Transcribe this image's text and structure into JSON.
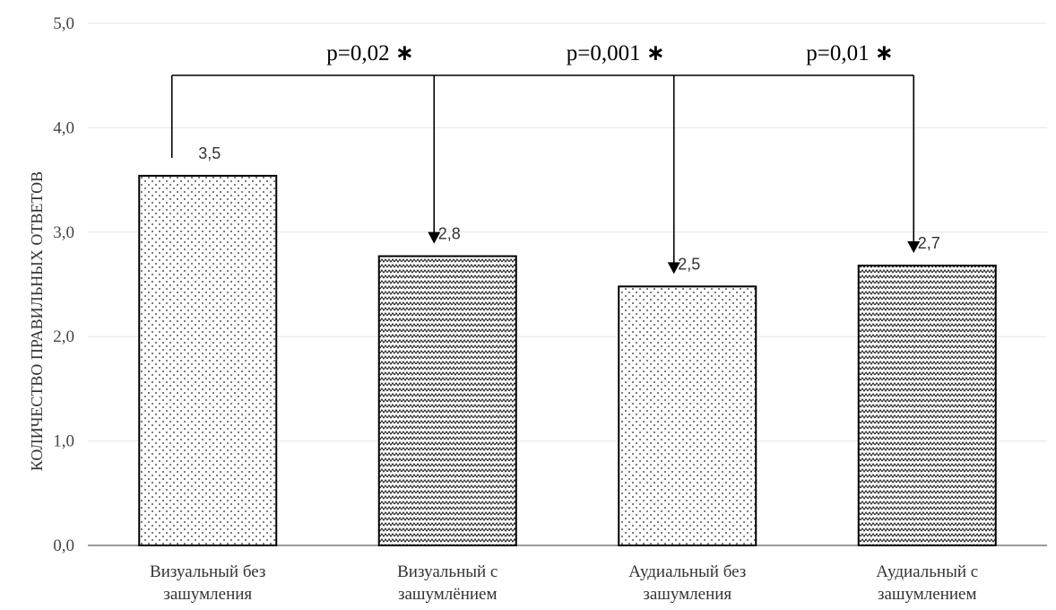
{
  "chart_data": {
    "type": "bar",
    "title": "",
    "xlabel": "",
    "ylabel": "КОЛИЧЕСТВО ПРАВИЛЬНЫХ ОТВЕТОВ",
    "ylim": [
      0,
      5
    ],
    "yticks": [
      "0,0",
      "1,0",
      "2,0",
      "3,0",
      "4,0",
      "5,0"
    ],
    "grid": true,
    "categories": [
      [
        "Визуальный без",
        "зашумления"
      ],
      [
        "Визуальный с",
        "зашумлёнием"
      ],
      [
        "Аудиальный без",
        "зашумления"
      ],
      [
        "Аудиальный с",
        "зашумлением"
      ]
    ],
    "values": [
      3.54,
      2.77,
      2.48,
      2.68
    ],
    "value_labels": [
      "3,5",
      "2,8",
      "2,5",
      "2,7"
    ],
    "fill_patterns": [
      "dots",
      "zigzag",
      "dots",
      "zigzag"
    ],
    "comparisons": [
      {
        "from": 0,
        "to": 1,
        "label": "p=0,02",
        "marker": "∗"
      },
      {
        "from": 0,
        "to": 2,
        "label": "p=0,001",
        "marker": "∗"
      },
      {
        "from": 0,
        "to": 3,
        "label": "p=0,01",
        "marker": "∗"
      }
    ]
  }
}
